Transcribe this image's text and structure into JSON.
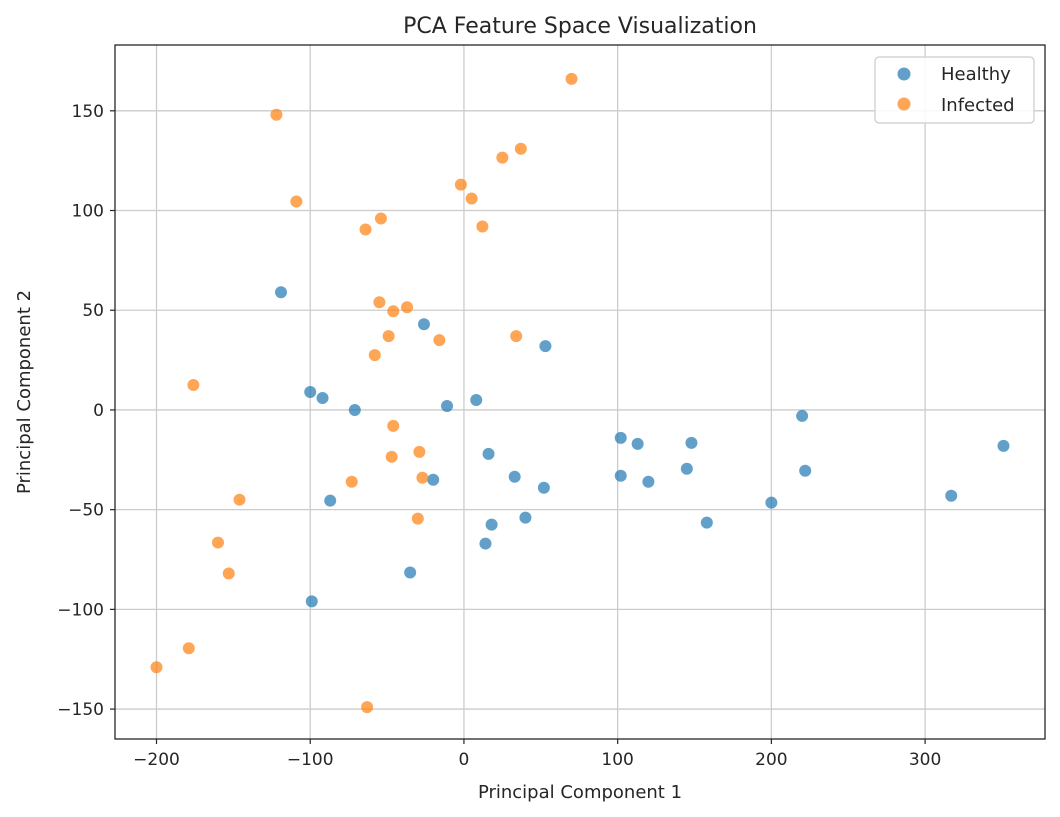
{
  "chart_data": {
    "type": "scatter",
    "title": "PCA Feature Space Visualization",
    "xlabel": "Principal Component 1",
    "ylabel": "Principal Component 2",
    "xlim": [
      -227,
      378
    ],
    "ylim": [
      -165,
      183
    ],
    "x_ticks": [
      -200,
      -100,
      0,
      100,
      200,
      300
    ],
    "y_ticks": [
      -150,
      -100,
      -50,
      0,
      50,
      100,
      150
    ],
    "x_tick_labels": [
      "−200",
      "−100",
      "0",
      "100",
      "200",
      "300"
    ],
    "y_tick_labels": [
      "−150",
      "−100",
      "−50",
      "0",
      "50",
      "100",
      "150"
    ],
    "grid": true,
    "legend_position": "top-right",
    "series": [
      {
        "name": "Healthy",
        "color": "#1f77b4",
        "points": [
          [
            -119,
            59
          ],
          [
            -26,
            43
          ],
          [
            53,
            32
          ],
          [
            -100,
            9
          ],
          [
            -92,
            6
          ],
          [
            -71,
            0
          ],
          [
            -11,
            2
          ],
          [
            8,
            5
          ],
          [
            102,
            -14
          ],
          [
            113,
            -17
          ],
          [
            148,
            -16.5
          ],
          [
            220,
            -3
          ],
          [
            351,
            -18
          ],
          [
            16,
            -22
          ],
          [
            33,
            -33.5
          ],
          [
            52,
            -39
          ],
          [
            -20,
            -35
          ],
          [
            -87,
            -45.5
          ],
          [
            102,
            -33
          ],
          [
            120,
            -36
          ],
          [
            145,
            -29.5
          ],
          [
            222,
            -30.5
          ],
          [
            317,
            -43
          ],
          [
            200,
            -46.5
          ],
          [
            158,
            -56.5
          ],
          [
            40,
            -54
          ],
          [
            18,
            -57.5
          ],
          [
            14,
            -67
          ],
          [
            -35,
            -81.5
          ],
          [
            -99,
            -96
          ]
        ]
      },
      {
        "name": "Infected",
        "color": "#ff7f0e",
        "points": [
          [
            70,
            166
          ],
          [
            -122,
            148
          ],
          [
            37,
            131
          ],
          [
            25,
            126.5
          ],
          [
            -2,
            113
          ],
          [
            5,
            106
          ],
          [
            -109,
            104.5
          ],
          [
            -54,
            96
          ],
          [
            -64,
            90.5
          ],
          [
            12,
            92
          ],
          [
            -55,
            54
          ],
          [
            -37,
            51.5
          ],
          [
            -46,
            49.5
          ],
          [
            -49,
            37
          ],
          [
            34,
            37
          ],
          [
            -16,
            35
          ],
          [
            -58,
            27.5
          ],
          [
            -176,
            12.5
          ],
          [
            -46,
            -8
          ],
          [
            -29,
            -21
          ],
          [
            -47,
            -23.5
          ],
          [
            -27,
            -34
          ],
          [
            -73,
            -36
          ],
          [
            -146,
            -45
          ],
          [
            -30,
            -54.5
          ],
          [
            -160,
            -66.5
          ],
          [
            -153,
            -82
          ],
          [
            -179,
            -119.5
          ],
          [
            -200,
            -129
          ],
          [
            -63,
            -149
          ]
        ]
      }
    ]
  }
}
